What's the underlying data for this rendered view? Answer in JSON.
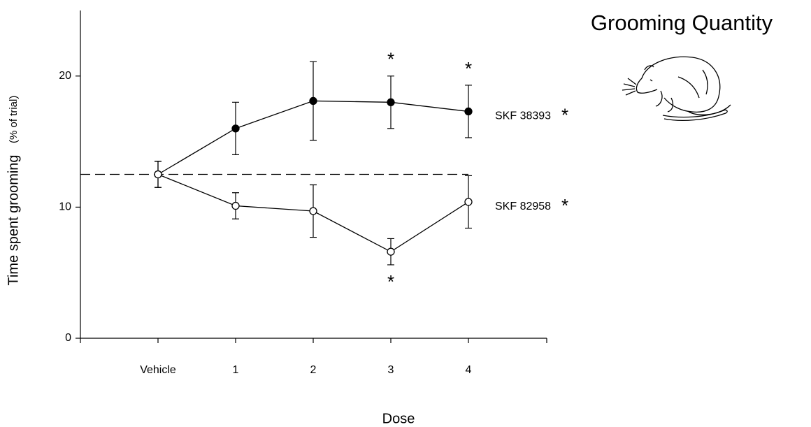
{
  "chart_data": {
    "type": "line",
    "title": "Grooming Quantity",
    "ylabel": "Time spent grooming",
    "ylabel_unit": "(% of trial)",
    "xlabel": "Dose",
    "categories": [
      "Vehicle",
      "1",
      "2",
      "3",
      "4"
    ],
    "ylim": [
      0,
      25
    ],
    "yticks": [
      0,
      10,
      20
    ],
    "reference_line": 12.5,
    "significance_mark": "*",
    "series": [
      {
        "name": "SKF 38393",
        "color": "#000000",
        "filled": true,
        "values": [
          12.5,
          16,
          18.1,
          18,
          17.3
        ],
        "errors": [
          1,
          2,
          3,
          2,
          2
        ],
        "significant": [
          false,
          false,
          false,
          true,
          true
        ],
        "overall_significant": true
      },
      {
        "name": "SKF 82958",
        "color": "#000000",
        "filled": false,
        "values": [
          12.5,
          10.1,
          9.7,
          6.6,
          10.4
        ],
        "errors": [
          1,
          1,
          2,
          1,
          2
        ],
        "significant": [
          false,
          false,
          false,
          true,
          false
        ],
        "overall_significant": true
      }
    ]
  }
}
